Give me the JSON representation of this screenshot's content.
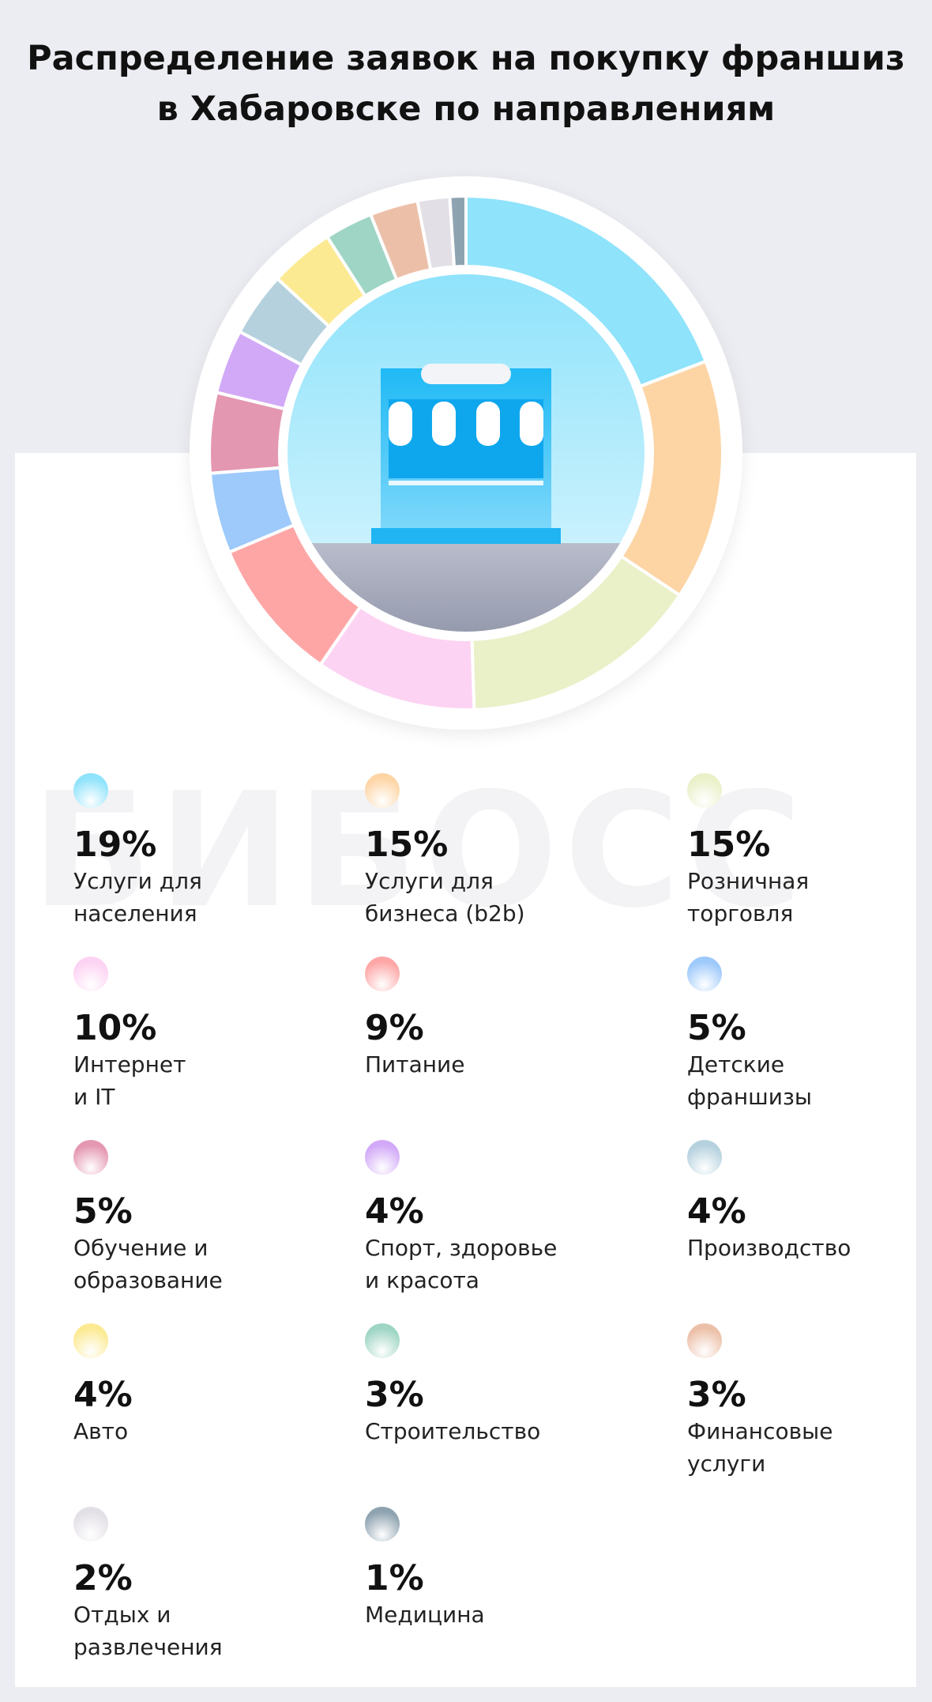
{
  "chart_data": {
    "type": "pie",
    "title": "Распределение заявок на покупку франшиз\nв Хабаровске по направлениям",
    "watermark": "БИБОСС",
    "categories": [
      "Услуги для\nнаселения",
      "Услуги для\nбизнеса (b2b)",
      "Розничная\nторговля",
      "Интернет\nи IT",
      "Питание",
      "Детские\nфраншизы",
      "Обучение и\nобразование",
      "Спорт, здоровье\nи красота",
      "Производство",
      "Авто",
      "Строительство",
      "Финансовые\nуслуги",
      "Отдых и\nразвлечения",
      "Медицина"
    ],
    "values": [
      19,
      15,
      15,
      10,
      9,
      5,
      5,
      4,
      4,
      4,
      3,
      3,
      2,
      1
    ],
    "value_labels": [
      "19%",
      "15%",
      "15%",
      "10%",
      "9%",
      "5%",
      "5%",
      "4%",
      "4%",
      "4%",
      "3%",
      "3%",
      "2%",
      "1%"
    ],
    "colors": [
      "#8fe3fb",
      "#fdd5a5",
      "#eaf0c8",
      "#fdd3f3",
      "#fea6a6",
      "#9dc9fb",
      "#e497b0",
      "#d2a9f7",
      "#b5d1de",
      "#fcea93",
      "#9ed5c4",
      "#ecc0a8",
      "#e3dfe6",
      "#8ea3b0"
    ]
  }
}
